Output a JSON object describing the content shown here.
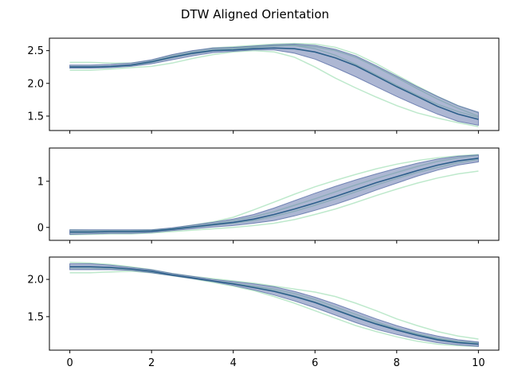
{
  "chart_data": {
    "type": "line",
    "title": "DTW Aligned Orientation",
    "xlim": [
      -0.5,
      10.5
    ],
    "xticks": [
      0,
      2,
      4,
      6,
      8,
      10
    ],
    "grid": false,
    "colors": {
      "band": "#5b6fa8",
      "mean": "#2c5f8a",
      "trials": "#6fcf8d"
    },
    "panels": [
      {
        "ylim": [
          1.28,
          2.69
        ],
        "yticks": [
          1.5,
          2.0,
          2.5
        ],
        "ytick_labels": [
          "1.5",
          "2.0",
          "2.5"
        ],
        "x": [
          0,
          0.5,
          1,
          1.5,
          2,
          2.5,
          3,
          3.5,
          4,
          4.5,
          5,
          5.5,
          6,
          6.5,
          7,
          7.5,
          8,
          8.5,
          9,
          9.5,
          10
        ],
        "mean": [
          2.25,
          2.25,
          2.26,
          2.28,
          2.33,
          2.4,
          2.46,
          2.5,
          2.51,
          2.53,
          2.54,
          2.53,
          2.48,
          2.39,
          2.27,
          2.11,
          1.95,
          1.8,
          1.65,
          1.53,
          1.45
        ],
        "lower": [
          2.23,
          2.23,
          2.24,
          2.26,
          2.3,
          2.36,
          2.42,
          2.47,
          2.49,
          2.51,
          2.51,
          2.46,
          2.37,
          2.24,
          2.1,
          1.95,
          1.8,
          1.66,
          1.53,
          1.42,
          1.36
        ],
        "upper": [
          2.28,
          2.28,
          2.29,
          2.31,
          2.36,
          2.44,
          2.5,
          2.54,
          2.55,
          2.57,
          2.59,
          2.6,
          2.58,
          2.52,
          2.42,
          2.27,
          2.11,
          1.95,
          1.8,
          1.66,
          1.56
        ],
        "trials": [
          [
            2.32,
            2.32,
            2.31,
            2.31,
            2.35,
            2.43,
            2.49,
            2.54,
            2.56,
            2.58,
            2.6,
            2.61,
            2.6,
            2.55,
            2.45,
            2.3,
            2.13,
            1.96,
            1.8,
            1.66,
            1.55
          ],
          [
            2.2,
            2.2,
            2.22,
            2.24,
            2.26,
            2.31,
            2.38,
            2.44,
            2.48,
            2.5,
            2.48,
            2.4,
            2.25,
            2.08,
            1.93,
            1.79,
            1.66,
            1.55,
            1.47,
            1.4,
            1.34
          ],
          [
            2.26,
            2.26,
            2.26,
            2.28,
            2.33,
            2.41,
            2.47,
            2.52,
            2.54,
            2.56,
            2.58,
            2.58,
            2.53,
            2.43,
            2.29,
            2.13,
            1.97,
            1.82,
            1.68,
            1.57,
            1.48
          ],
          [
            2.24,
            2.24,
            2.25,
            2.27,
            2.32,
            2.39,
            2.45,
            2.5,
            2.53,
            2.55,
            2.57,
            2.58,
            2.56,
            2.5,
            2.4,
            2.25,
            2.09,
            1.92,
            1.76,
            1.62,
            1.5
          ]
        ]
      },
      {
        "ylim": [
          -0.28,
          1.72
        ],
        "yticks": [
          0,
          1
        ],
        "ytick_labels": [
          "0",
          "1"
        ],
        "x": [
          0,
          0.5,
          1,
          1.5,
          2,
          2.5,
          3,
          3.5,
          4,
          4.5,
          5,
          5.5,
          6,
          6.5,
          7,
          7.5,
          8,
          8.5,
          9,
          9.5,
          10
        ],
        "mean": [
          -0.1,
          -0.1,
          -0.09,
          -0.09,
          -0.08,
          -0.04,
          0.01,
          0.06,
          0.11,
          0.18,
          0.28,
          0.4,
          0.53,
          0.67,
          0.82,
          0.97,
          1.1,
          1.23,
          1.35,
          1.44,
          1.5
        ],
        "lower": [
          -0.15,
          -0.14,
          -0.13,
          -0.13,
          -0.11,
          -0.07,
          -0.03,
          0.01,
          0.04,
          0.09,
          0.15,
          0.25,
          0.37,
          0.5,
          0.65,
          0.81,
          0.96,
          1.11,
          1.24,
          1.35,
          1.42
        ],
        "upper": [
          -0.05,
          -0.05,
          -0.05,
          -0.05,
          -0.05,
          -0.01,
          0.05,
          0.11,
          0.18,
          0.28,
          0.42,
          0.58,
          0.74,
          0.89,
          1.03,
          1.16,
          1.28,
          1.39,
          1.48,
          1.54,
          1.57
        ],
        "trials": [
          [
            -0.05,
            -0.06,
            -0.06,
            -0.06,
            -0.05,
            -0.02,
            0.05,
            0.12,
            0.22,
            0.38,
            0.55,
            0.72,
            0.88,
            1.02,
            1.15,
            1.27,
            1.37,
            1.45,
            1.51,
            1.55,
            1.58
          ],
          [
            -0.16,
            -0.15,
            -0.14,
            -0.14,
            -0.12,
            -0.09,
            -0.06,
            -0.03,
            0.0,
            0.04,
            0.09,
            0.17,
            0.28,
            0.4,
            0.54,
            0.69,
            0.83,
            0.96,
            1.07,
            1.16,
            1.22
          ],
          [
            -0.12,
            -0.11,
            -0.1,
            -0.1,
            -0.09,
            -0.05,
            0.0,
            0.05,
            0.09,
            0.15,
            0.24,
            0.35,
            0.48,
            0.62,
            0.77,
            0.92,
            1.06,
            1.19,
            1.3,
            1.4,
            1.47
          ],
          [
            -0.08,
            -0.08,
            -0.08,
            -0.08,
            -0.07,
            -0.03,
            0.02,
            0.08,
            0.15,
            0.23,
            0.34,
            0.48,
            0.62,
            0.77,
            0.92,
            1.06,
            1.19,
            1.32,
            1.43,
            1.51,
            1.56
          ]
        ]
      },
      {
        "ylim": [
          1.05,
          2.3
        ],
        "yticks": [
          1.5,
          2.0
        ],
        "ytick_labels": [
          "1.5",
          "2.0"
        ],
        "x": [
          0,
          0.5,
          1,
          1.5,
          2,
          2.5,
          3,
          3.5,
          4,
          4.5,
          5,
          5.5,
          6,
          6.5,
          7,
          7.5,
          8,
          8.5,
          9,
          9.5,
          10
        ],
        "mean": [
          2.17,
          2.17,
          2.16,
          2.14,
          2.11,
          2.06,
          2.02,
          1.98,
          1.94,
          1.89,
          1.84,
          1.77,
          1.69,
          1.59,
          1.49,
          1.4,
          1.32,
          1.25,
          1.19,
          1.15,
          1.13
        ],
        "lower": [
          2.13,
          2.13,
          2.13,
          2.12,
          2.09,
          2.05,
          2.01,
          1.97,
          1.92,
          1.86,
          1.79,
          1.71,
          1.62,
          1.52,
          1.42,
          1.33,
          1.26,
          1.2,
          1.15,
          1.12,
          1.1
        ],
        "upper": [
          2.21,
          2.21,
          2.19,
          2.16,
          2.13,
          2.08,
          2.04,
          2.0,
          1.97,
          1.94,
          1.9,
          1.84,
          1.76,
          1.67,
          1.57,
          1.47,
          1.38,
          1.3,
          1.24,
          1.19,
          1.16
        ],
        "trials": [
          [
            2.23,
            2.22,
            2.2,
            2.17,
            2.13,
            2.08,
            2.04,
            2.01,
            1.98,
            1.95,
            1.91,
            1.87,
            1.83,
            1.77,
            1.68,
            1.58,
            1.47,
            1.38,
            1.3,
            1.24,
            1.2
          ],
          [
            2.09,
            2.09,
            2.1,
            2.11,
            2.09,
            2.05,
            2.01,
            1.96,
            1.91,
            1.85,
            1.77,
            1.68,
            1.58,
            1.48,
            1.38,
            1.3,
            1.23,
            1.17,
            1.13,
            1.11,
            1.1
          ],
          [
            2.17,
            2.17,
            2.16,
            2.14,
            2.11,
            2.06,
            2.02,
            1.98,
            1.94,
            1.9,
            1.85,
            1.78,
            1.7,
            1.6,
            1.5,
            1.41,
            1.33,
            1.26,
            1.2,
            1.16,
            1.14
          ],
          [
            2.15,
            2.15,
            2.14,
            2.13,
            2.1,
            2.06,
            2.02,
            1.98,
            1.95,
            1.91,
            1.87,
            1.81,
            1.73,
            1.63,
            1.53,
            1.43,
            1.34,
            1.27,
            1.21,
            1.17,
            1.15
          ]
        ]
      }
    ]
  }
}
